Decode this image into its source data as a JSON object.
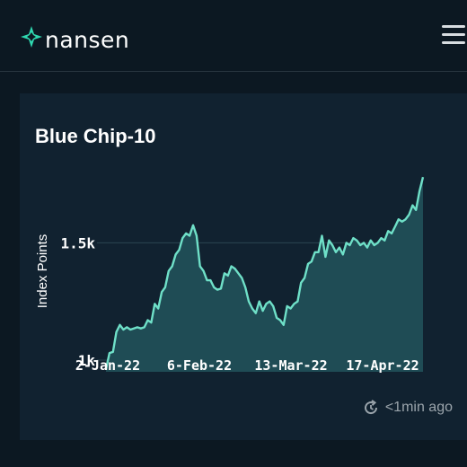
{
  "brand": {
    "name": "nansen",
    "accent": "#2fd8b0"
  },
  "header": {
    "menu_icon": "hamburger-menu-icon"
  },
  "card": {
    "title": "Blue Chip-10",
    "updated_text": "<1min ago",
    "updated_icon": "refresh-clock-icon"
  },
  "chart_data": {
    "type": "area",
    "ylabel": "Index Points",
    "x_ticks": [
      "2-Jan-22",
      "6-Feb-22",
      "13-Mar-22",
      "17-Apr-22"
    ],
    "y_ticks": [
      {
        "value": 1000,
        "label": "1k"
      },
      {
        "value": 1500,
        "label": "1.5k"
      }
    ],
    "ylim": [
      950,
      1800
    ],
    "line_color": "#6fe0c8",
    "fill_color": "#1f4c55",
    "grid": "horizontal",
    "series": [
      {
        "values": [
          960,
          1030,
          1035,
          1120,
          1150,
          1130,
          1140,
          1130,
          1135,
          1140,
          1135,
          1140,
          1170,
          1160,
          1240,
          1220,
          1290,
          1310,
          1380,
          1400,
          1450,
          1470,
          1520,
          1540,
          1530,
          1575,
          1530,
          1400,
          1380,
          1340,
          1340,
          1310,
          1300,
          1305,
          1370,
          1360,
          1400,
          1390,
          1370,
          1350,
          1310,
          1250,
          1220,
          1200,
          1250,
          1210,
          1240,
          1250,
          1230,
          1180,
          1170,
          1150,
          1230,
          1220,
          1240,
          1250,
          1330,
          1350,
          1410,
          1420,
          1460,
          1460,
          1530,
          1440,
          1510,
          1490,
          1460,
          1480,
          1450,
          1500,
          1490,
          1520,
          1510,
          1490,
          1500,
          1480,
          1510,
          1490,
          1500,
          1520,
          1510,
          1550,
          1540,
          1570,
          1600,
          1590,
          1600,
          1620,
          1660,
          1640,
          1720,
          1780
        ]
      }
    ]
  }
}
